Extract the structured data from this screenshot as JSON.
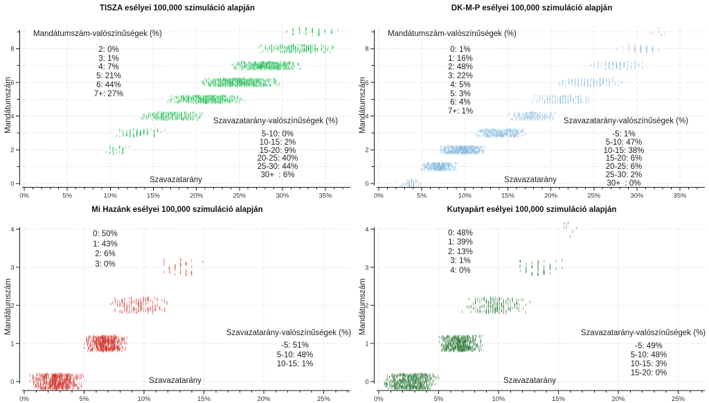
{
  "chart_data": [
    {
      "type": "strip-scatter",
      "party": "TISZA",
      "title": "TISZA esélyei 100,000 szimuláció alapján",
      "xlabel": "Szavazatarány",
      "ylabel": "Mandátumszám",
      "point_color": "#00B33C",
      "x_tick_labels": [
        "0%",
        "5%",
        "10%",
        "15%",
        "20%",
        "25%",
        "30%",
        "35%"
      ],
      "x_minor_tick_max_pct": 37,
      "y_ticks": [
        0,
        1,
        2,
        3,
        4,
        5,
        6,
        7,
        8,
        9
      ],
      "y_label_every": 2,
      "seat_probabilities": {
        "header": "Mandátumszám-valószínűségek (%)",
        "lines": [
          "2: 0%",
          "3: 1%",
          "4: 7%",
          "5: 21%",
          "6: 44%",
          "7+: 27%"
        ]
      },
      "share_probabilities": {
        "header": "Szavazatarány-valószínűségek (%)",
        "lines": [
          "5-10: 0%",
          "10-15: 2%",
          "15-20: 9%",
          "20-25: 40%",
          "25-30: 44%",
          "30+  : 6%"
        ]
      },
      "bands": [
        {
          "seats": 2,
          "pct_min": 9.2,
          "pct_max": 12.2,
          "points": 30
        },
        {
          "seats": 3,
          "pct_min": 10.3,
          "pct_max": 16.3,
          "points": 90
        },
        {
          "seats": 4,
          "pct_min": 13.2,
          "pct_max": 21.0,
          "points": 220
        },
        {
          "seats": 5,
          "pct_min": 16.3,
          "pct_max": 25.8,
          "points": 380
        },
        {
          "seats": 6,
          "pct_min": 20.2,
          "pct_max": 29.8,
          "points": 500
        },
        {
          "seats": 7,
          "pct_min": 23.8,
          "pct_max": 32.5,
          "points": 380
        },
        {
          "seats": 8,
          "pct_min": 27.0,
          "pct_max": 36.3,
          "points": 220
        },
        {
          "seats": 9,
          "pct_min": 30.5,
          "pct_max": 37.2,
          "points": 55
        }
      ]
    },
    {
      "type": "strip-scatter",
      "party": "DK-M-P",
      "title": "DK-M-P esélyei 100,000 szimuláció alapján",
      "xlabel": "Szavazatarány",
      "ylabel": "Mandátumszám",
      "point_color": "#85BBE0",
      "x_tick_labels": [
        "0%",
        "5%",
        "10%",
        "15%",
        "20%",
        "25%",
        "30%",
        "35%"
      ],
      "x_minor_tick_max_pct": 37,
      "y_ticks": [
        0,
        1,
        2,
        3,
        4,
        5,
        6,
        7,
        8,
        9
      ],
      "y_label_every": 2,
      "seat_probabilities": {
        "header": "Mandátumszám-valószínűségek (%)",
        "lines": [
          "0: 1%",
          "1: 16%",
          "2: 48%",
          "3: 22%",
          "4: 5%",
          "5: 3%",
          "6: 4%",
          "7+: 1%"
        ]
      },
      "share_probabilities": {
        "header": "Szavazatarány-valószínűségek (%)",
        "lines": [
          "-5: 1%",
          "5-10: 47%",
          "10-15: 38%",
          "15-20: 6%",
          "20-25: 6%",
          "25-30: 2%",
          "30+  : 0%"
        ]
      },
      "bands": [
        {
          "seats": 0,
          "pct_min": 2.0,
          "pct_max": 5.1,
          "points": 70
        },
        {
          "seats": 1,
          "pct_min": 4.8,
          "pct_max": 9.2,
          "points": 300
        },
        {
          "seats": 2,
          "pct_min": 6.9,
          "pct_max": 12.5,
          "points": 430
        },
        {
          "seats": 3,
          "pct_min": 10.7,
          "pct_max": 17.3,
          "points": 300
        },
        {
          "seats": 4,
          "pct_min": 14.8,
          "pct_max": 20.6,
          "points": 180
        },
        {
          "seats": 5,
          "pct_min": 17.5,
          "pct_max": 25.0,
          "points": 150
        },
        {
          "seats": 6,
          "pct_min": 20.3,
          "pct_max": 28.6,
          "points": 140
        },
        {
          "seats": 7,
          "pct_min": 24.2,
          "pct_max": 31.5,
          "points": 100
        },
        {
          "seats": 8,
          "pct_min": 27.0,
          "pct_max": 33.2,
          "points": 55
        },
        {
          "seats": 9,
          "pct_min": 31.5,
          "pct_max": 34.2,
          "points": 8
        }
      ]
    },
    {
      "type": "strip-scatter",
      "party": "Mi Hazánk",
      "title": "Mi Hazánk esélyei 100,000 szimuláció alapján",
      "xlabel": "Szavazatarány",
      "ylabel": "Mandátumszám",
      "point_color": "#CC2118",
      "x_tick_labels": [
        "0%",
        "5%",
        "10%",
        "15%",
        "20%",
        "25%"
      ],
      "x_minor_tick_max_pct": 27,
      "y_ticks": [
        0,
        1,
        2,
        3,
        4
      ],
      "y_label_every": 1,
      "seat_probabilities": {
        "lines": [
          "0: 50%",
          "1: 43%",
          "2: 6%",
          "3: 0%"
        ]
      },
      "share_probabilities": {
        "header": "Szavazatarány-valószínűségek (%)",
        "lines": [
          "-5: 51%",
          "5-10: 48%",
          "10-15: 1%"
        ]
      },
      "bands": [
        {
          "seats": 0,
          "pct_min": 0.4,
          "pct_max": 5.05,
          "points": 520
        },
        {
          "seats": 1,
          "pct_min": 4.9,
          "pct_max": 8.65,
          "points": 450
        },
        {
          "seats": 2,
          "pct_min": 6.8,
          "pct_max": 12.3,
          "points": 170
        },
        {
          "seats": 3,
          "pct_min": 11.2,
          "pct_max": 14.9,
          "points": 40
        }
      ]
    },
    {
      "type": "strip-scatter",
      "party": "Kutyapárt",
      "title": "Kutyapárt esélyei 100,000 szimuláció alapján",
      "xlabel": "Szavazatarány",
      "ylabel": "Mandátumszám",
      "point_color": "#1C6F2B",
      "x_tick_labels": [
        "0%",
        "5%",
        "10%",
        "15%",
        "20%",
        "25%"
      ],
      "x_minor_tick_max_pct": 27,
      "y_ticks": [
        0,
        1,
        2,
        3,
        4
      ],
      "y_label_every": 1,
      "seat_probabilities": {
        "lines": [
          "0: 48%",
          "1: 39%",
          "2: 13%",
          "3: 1%",
          "4: 0%"
        ]
      },
      "share_probabilities": {
        "header": "Szavazatarány-valószínűségek (%)",
        "lines": [
          "-5: 49%",
          "5-10: 48%",
          "10-15: 3%",
          "15-20: 0%"
        ]
      },
      "bands": [
        {
          "seats": 0,
          "pct_min": 0.3,
          "pct_max": 5.1,
          "points": 500
        },
        {
          "seats": 1,
          "pct_min": 4.9,
          "pct_max": 8.8,
          "points": 430
        },
        {
          "seats": 2,
          "pct_min": 6.8,
          "pct_max": 12.8,
          "points": 200
        },
        {
          "seats": 3,
          "pct_min": 11.3,
          "pct_max": 15.8,
          "points": 55
        },
        {
          "seats": 4,
          "pct_min": 15.3,
          "pct_max": 16.7,
          "points": 8
        }
      ]
    }
  ]
}
